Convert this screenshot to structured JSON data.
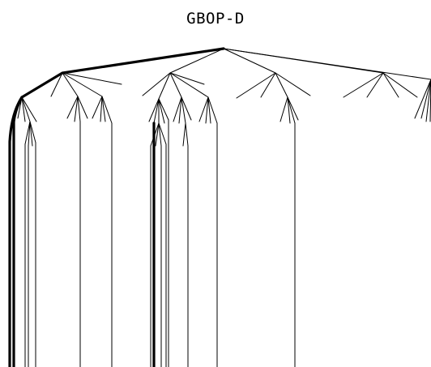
{
  "title": "GBOP-D",
  "colors": {
    "edge": "#000000",
    "background": "#ffffff"
  }
}
